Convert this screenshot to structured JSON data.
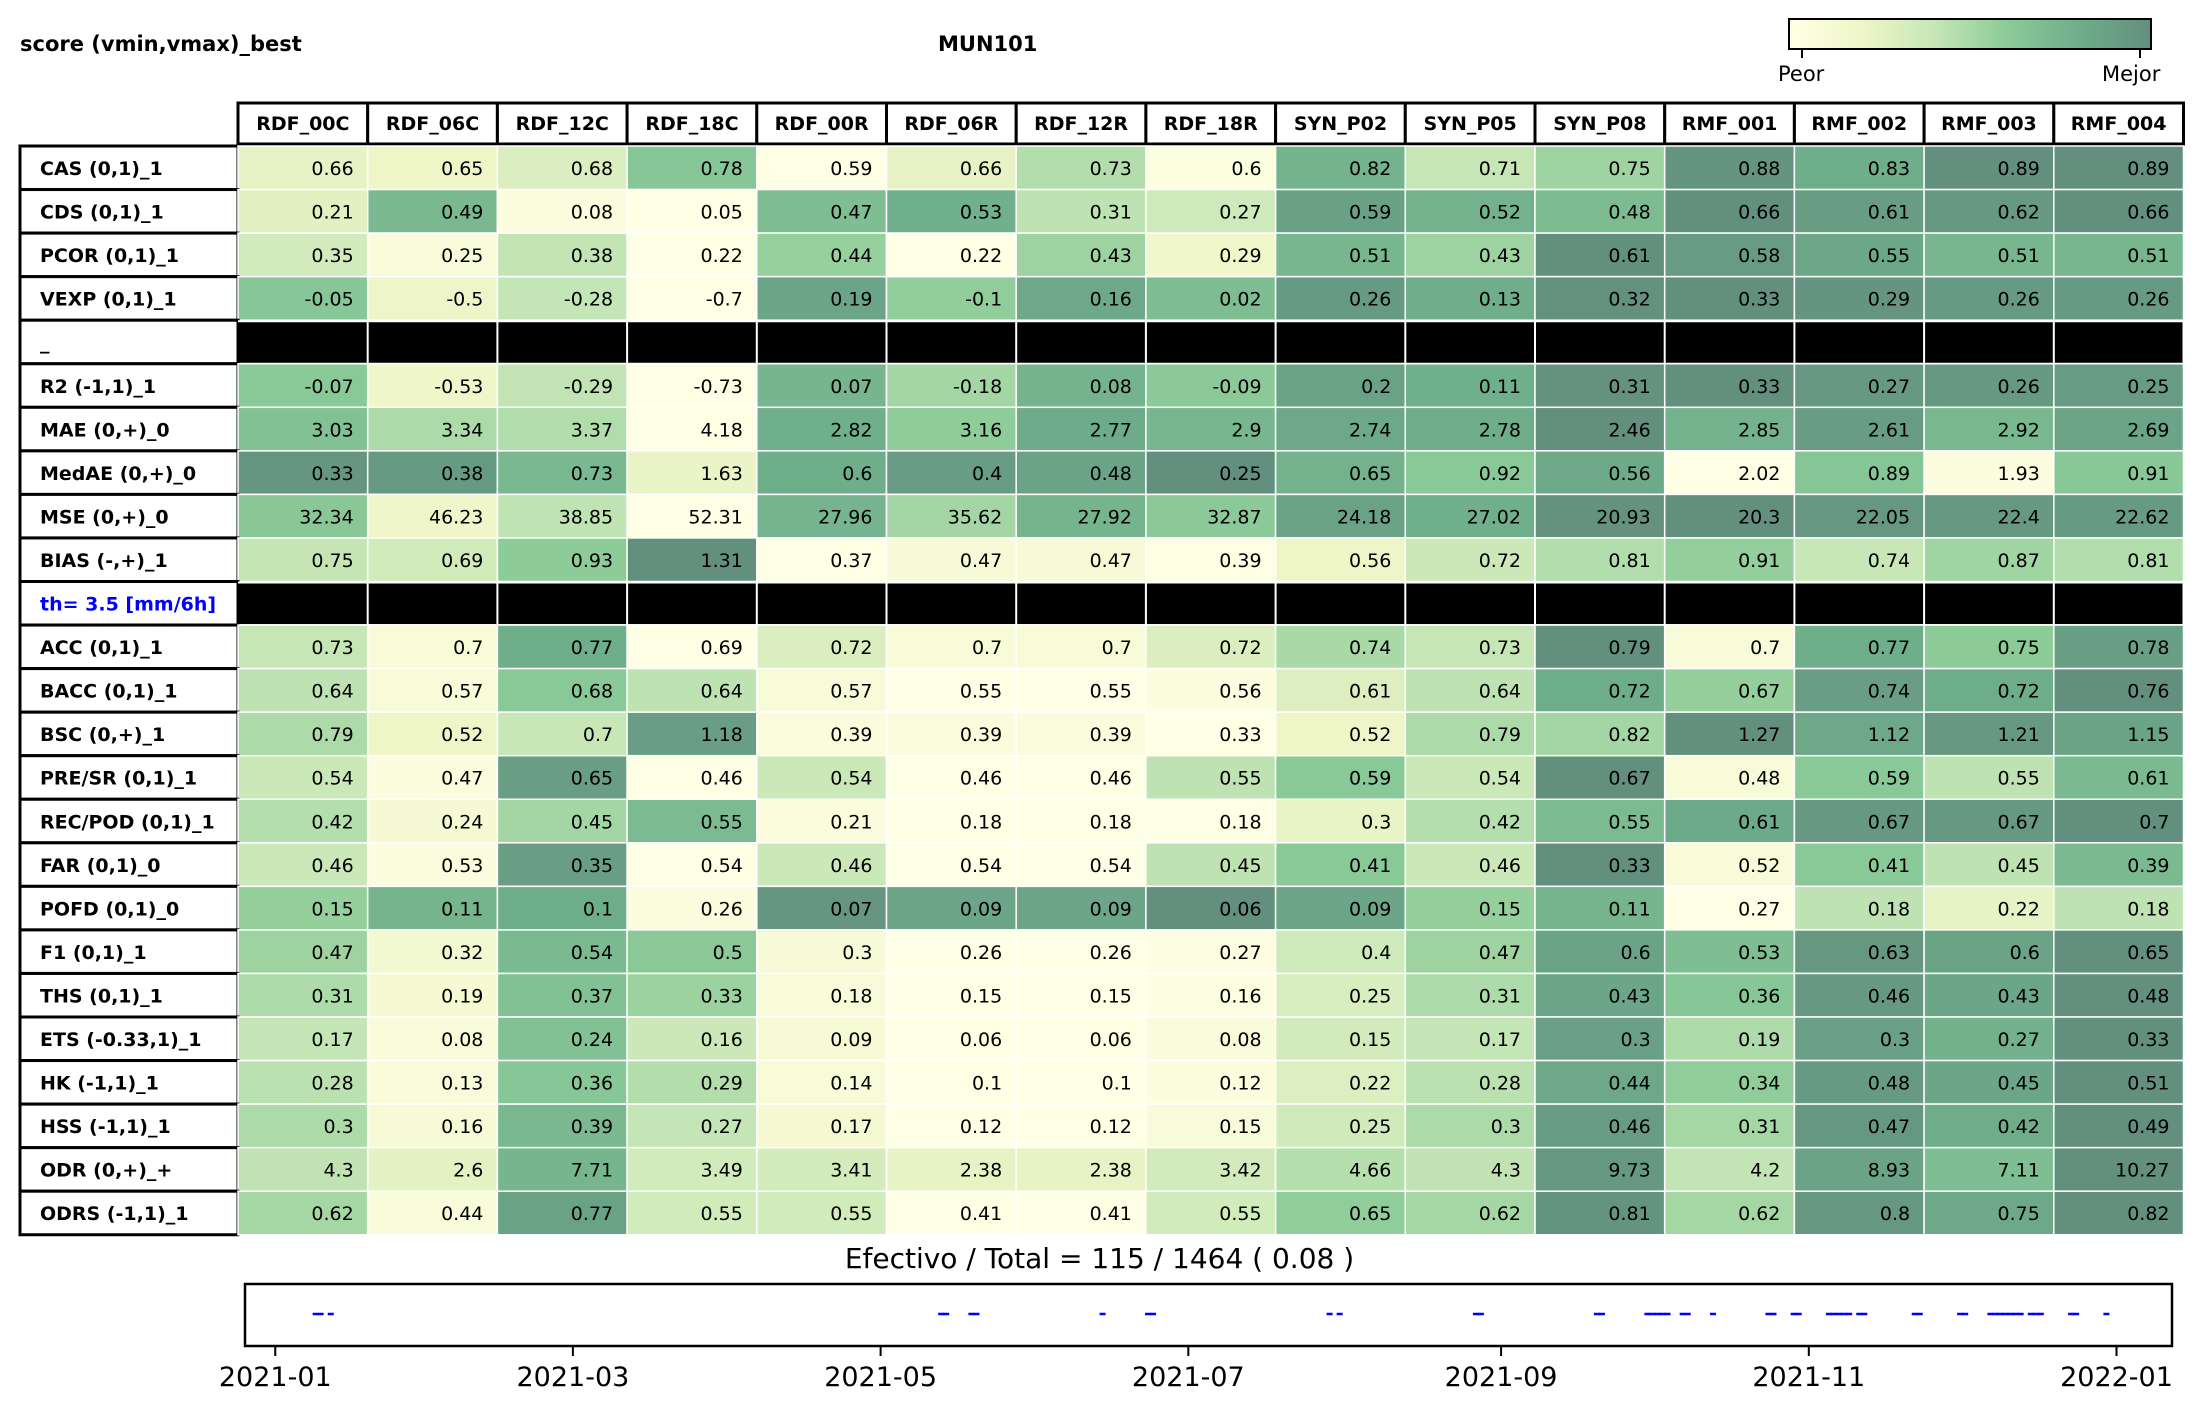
{
  "header": {
    "left_title": "score (vmin,vmax)_best",
    "center_title": "MUN101"
  },
  "colorbar": {
    "left_label": "Peor",
    "right_label": "Mejor",
    "colors": [
      "#ffffe5",
      "#eef6c8",
      "#c6e6b6",
      "#8ccb98",
      "#6fae8b",
      "#638f7e"
    ]
  },
  "chart_data": [
    {
      "type": "heatmap",
      "columns": [
        "RDF_00C",
        "RDF_06C",
        "RDF_12C",
        "RDF_18C",
        "RDF_00R",
        "RDF_06R",
        "RDF_12R",
        "RDF_18R",
        "SYN_P02",
        "SYN_P05",
        "SYN_P08",
        "RMF_001",
        "RMF_002",
        "RMF_003",
        "RMF_004"
      ],
      "rows": [
        {
          "label": "CAS (0,1)_1",
          "values": [
            0.66,
            0.65,
            0.68,
            0.78,
            0.59,
            0.66,
            0.73,
            0.6,
            0.82,
            0.71,
            0.75,
            0.88,
            0.83,
            0.89,
            0.89
          ]
        },
        {
          "label": "CDS (0,1)_1",
          "values": [
            0.21,
            0.49,
            0.08,
            0.05,
            0.47,
            0.53,
            0.31,
            0.27,
            0.59,
            0.52,
            0.48,
            0.66,
            0.61,
            0.62,
            0.66
          ]
        },
        {
          "label": "PCOR (0,1)_1",
          "values": [
            0.35,
            0.25,
            0.38,
            0.22,
            0.44,
            0.22,
            0.43,
            0.29,
            0.51,
            0.43,
            0.61,
            0.58,
            0.55,
            0.51,
            0.51
          ]
        },
        {
          "label": "VEXP (0,1)_1",
          "values": [
            -0.05,
            -0.5,
            -0.28,
            -0.7,
            0.19,
            -0.1,
            0.16,
            0.02,
            0.26,
            0.13,
            0.32,
            0.33,
            0.29,
            0.26,
            0.26
          ]
        },
        {
          "label": "_",
          "separator": true
        },
        {
          "label": "R2 (-1,1)_1",
          "values": [
            -0.07,
            -0.53,
            -0.29,
            -0.73,
            0.07,
            -0.18,
            0.08,
            -0.09,
            0.2,
            0.11,
            0.31,
            0.33,
            0.27,
            0.26,
            0.25
          ]
        },
        {
          "label": "MAE (0,+)_0",
          "values": [
            3.03,
            3.34,
            3.37,
            4.18,
            2.82,
            3.16,
            2.77,
            2.9,
            2.74,
            2.78,
            2.46,
            2.85,
            2.61,
            2.92,
            2.69
          ]
        },
        {
          "label": "MedAE (0,+)_0",
          "values": [
            0.33,
            0.38,
            0.73,
            1.63,
            0.6,
            0.4,
            0.48,
            0.25,
            0.65,
            0.92,
            0.56,
            2.02,
            0.89,
            1.93,
            0.91
          ]
        },
        {
          "label": "MSE (0,+)_0",
          "values": [
            32.34,
            46.23,
            38.85,
            52.31,
            27.96,
            35.62,
            27.92,
            32.87,
            24.18,
            27.02,
            20.93,
            20.3,
            22.05,
            22.4,
            22.62
          ]
        },
        {
          "label": "BIAS (-,+)_1",
          "values": [
            0.75,
            0.69,
            0.93,
            1.31,
            0.37,
            0.47,
            0.47,
            0.39,
            0.56,
            0.72,
            0.81,
            0.91,
            0.74,
            0.87,
            0.81
          ]
        },
        {
          "label": "th= 3.5 [mm/6h]",
          "separator": true,
          "label_color": "#0000ff"
        },
        {
          "label": "ACC (0,1)_1",
          "values": [
            0.73,
            0.7,
            0.77,
            0.69,
            0.72,
            0.7,
            0.7,
            0.72,
            0.74,
            0.73,
            0.79,
            0.7,
            0.77,
            0.75,
            0.78
          ]
        },
        {
          "label": "BACC (0,1)_1",
          "values": [
            0.64,
            0.57,
            0.68,
            0.64,
            0.57,
            0.55,
            0.55,
            0.56,
            0.61,
            0.64,
            0.72,
            0.67,
            0.74,
            0.72,
            0.76
          ]
        },
        {
          "label": "BSC (0,+)_1",
          "values": [
            0.79,
            0.52,
            0.7,
            1.18,
            0.39,
            0.39,
            0.39,
            0.33,
            0.52,
            0.79,
            0.82,
            1.27,
            1.12,
            1.21,
            1.15
          ]
        },
        {
          "label": "PRE/SR (0,1)_1",
          "values": [
            0.54,
            0.47,
            0.65,
            0.46,
            0.54,
            0.46,
            0.46,
            0.55,
            0.59,
            0.54,
            0.67,
            0.48,
            0.59,
            0.55,
            0.61
          ]
        },
        {
          "label": "REC/POD (0,1)_1",
          "values": [
            0.42,
            0.24,
            0.45,
            0.55,
            0.21,
            0.18,
            0.18,
            0.18,
            0.3,
            0.42,
            0.55,
            0.61,
            0.67,
            0.67,
            0.7
          ]
        },
        {
          "label": "FAR (0,1)_0",
          "values": [
            0.46,
            0.53,
            0.35,
            0.54,
            0.46,
            0.54,
            0.54,
            0.45,
            0.41,
            0.46,
            0.33,
            0.52,
            0.41,
            0.45,
            0.39
          ]
        },
        {
          "label": "POFD (0,1)_0",
          "values": [
            0.15,
            0.11,
            0.1,
            0.26,
            0.07,
            0.09,
            0.09,
            0.06,
            0.09,
            0.15,
            0.11,
            0.27,
            0.18,
            0.22,
            0.18
          ]
        },
        {
          "label": "F1 (0,1)_1",
          "values": [
            0.47,
            0.32,
            0.54,
            0.5,
            0.3,
            0.26,
            0.26,
            0.27,
            0.4,
            0.47,
            0.6,
            0.53,
            0.63,
            0.6,
            0.65
          ]
        },
        {
          "label": "THS (0,1)_1",
          "values": [
            0.31,
            0.19,
            0.37,
            0.33,
            0.18,
            0.15,
            0.15,
            0.16,
            0.25,
            0.31,
            0.43,
            0.36,
            0.46,
            0.43,
            0.48
          ]
        },
        {
          "label": "ETS (-0.33,1)_1",
          "values": [
            0.17,
            0.08,
            0.24,
            0.16,
            0.09,
            0.06,
            0.06,
            0.08,
            0.15,
            0.17,
            0.3,
            0.19,
            0.3,
            0.27,
            0.33
          ]
        },
        {
          "label": "HK (-1,1)_1",
          "values": [
            0.28,
            0.13,
            0.36,
            0.29,
            0.14,
            0.1,
            0.1,
            0.12,
            0.22,
            0.28,
            0.44,
            0.34,
            0.48,
            0.45,
            0.51
          ]
        },
        {
          "label": "HSS (-1,1)_1",
          "values": [
            0.3,
            0.16,
            0.39,
            0.27,
            0.17,
            0.12,
            0.12,
            0.15,
            0.25,
            0.3,
            0.46,
            0.31,
            0.47,
            0.42,
            0.49
          ]
        },
        {
          "label": "ODR (0,+)_+",
          "values": [
            4.3,
            2.6,
            7.71,
            3.49,
            3.41,
            2.38,
            2.38,
            3.42,
            4.66,
            4.3,
            9.73,
            4.2,
            8.93,
            7.11,
            10.27
          ]
        },
        {
          "label": "ODRS (-1,1)_1",
          "values": [
            0.62,
            0.44,
            0.77,
            0.55,
            0.55,
            0.41,
            0.41,
            0.55,
            0.65,
            0.62,
            0.81,
            0.62,
            0.8,
            0.75,
            0.82
          ]
        }
      ]
    },
    {
      "type": "scatter",
      "title": "Efectivo / Total  =  115 / 1464 ( 0.08 )",
      "x_ticks": [
        "2021-01",
        "2021-03",
        "2021-05",
        "2021-07",
        "2021-09",
        "2021-11",
        "2022-01"
      ],
      "xlim": [
        "2020-12-26",
        "2022-01-12"
      ],
      "marker_color": "#0000ff",
      "events": [
        "2021-01-09",
        "2021-01-10",
        "2021-01-12",
        "2021-05-13",
        "2021-05-14",
        "2021-05-19",
        "2021-05-20",
        "2021-06-14",
        "2021-06-23",
        "2021-06-24",
        "2021-07-29",
        "2021-07-31",
        "2021-08-27",
        "2021-08-28",
        "2021-09-20",
        "2021-09-21",
        "2021-09-30",
        "2021-10-01",
        "2021-10-02",
        "2021-10-03",
        "2021-10-04",
        "2021-10-07",
        "2021-10-08",
        "2021-10-13",
        "2021-10-24",
        "2021-10-25",
        "2021-10-29",
        "2021-10-30",
        "2021-11-05",
        "2021-11-06",
        "2021-11-07",
        "2021-11-08",
        "2021-11-09",
        "2021-11-11",
        "2021-11-12",
        "2021-11-22",
        "2021-11-23",
        "2021-12-01",
        "2021-12-02",
        "2021-12-07",
        "2021-12-08",
        "2021-12-09",
        "2021-12-10",
        "2021-12-11",
        "2021-12-12",
        "2021-12-13",
        "2021-12-15",
        "2021-12-16",
        "2021-12-17",
        "2021-12-23",
        "2021-12-24",
        "2021-12-30"
      ]
    }
  ]
}
